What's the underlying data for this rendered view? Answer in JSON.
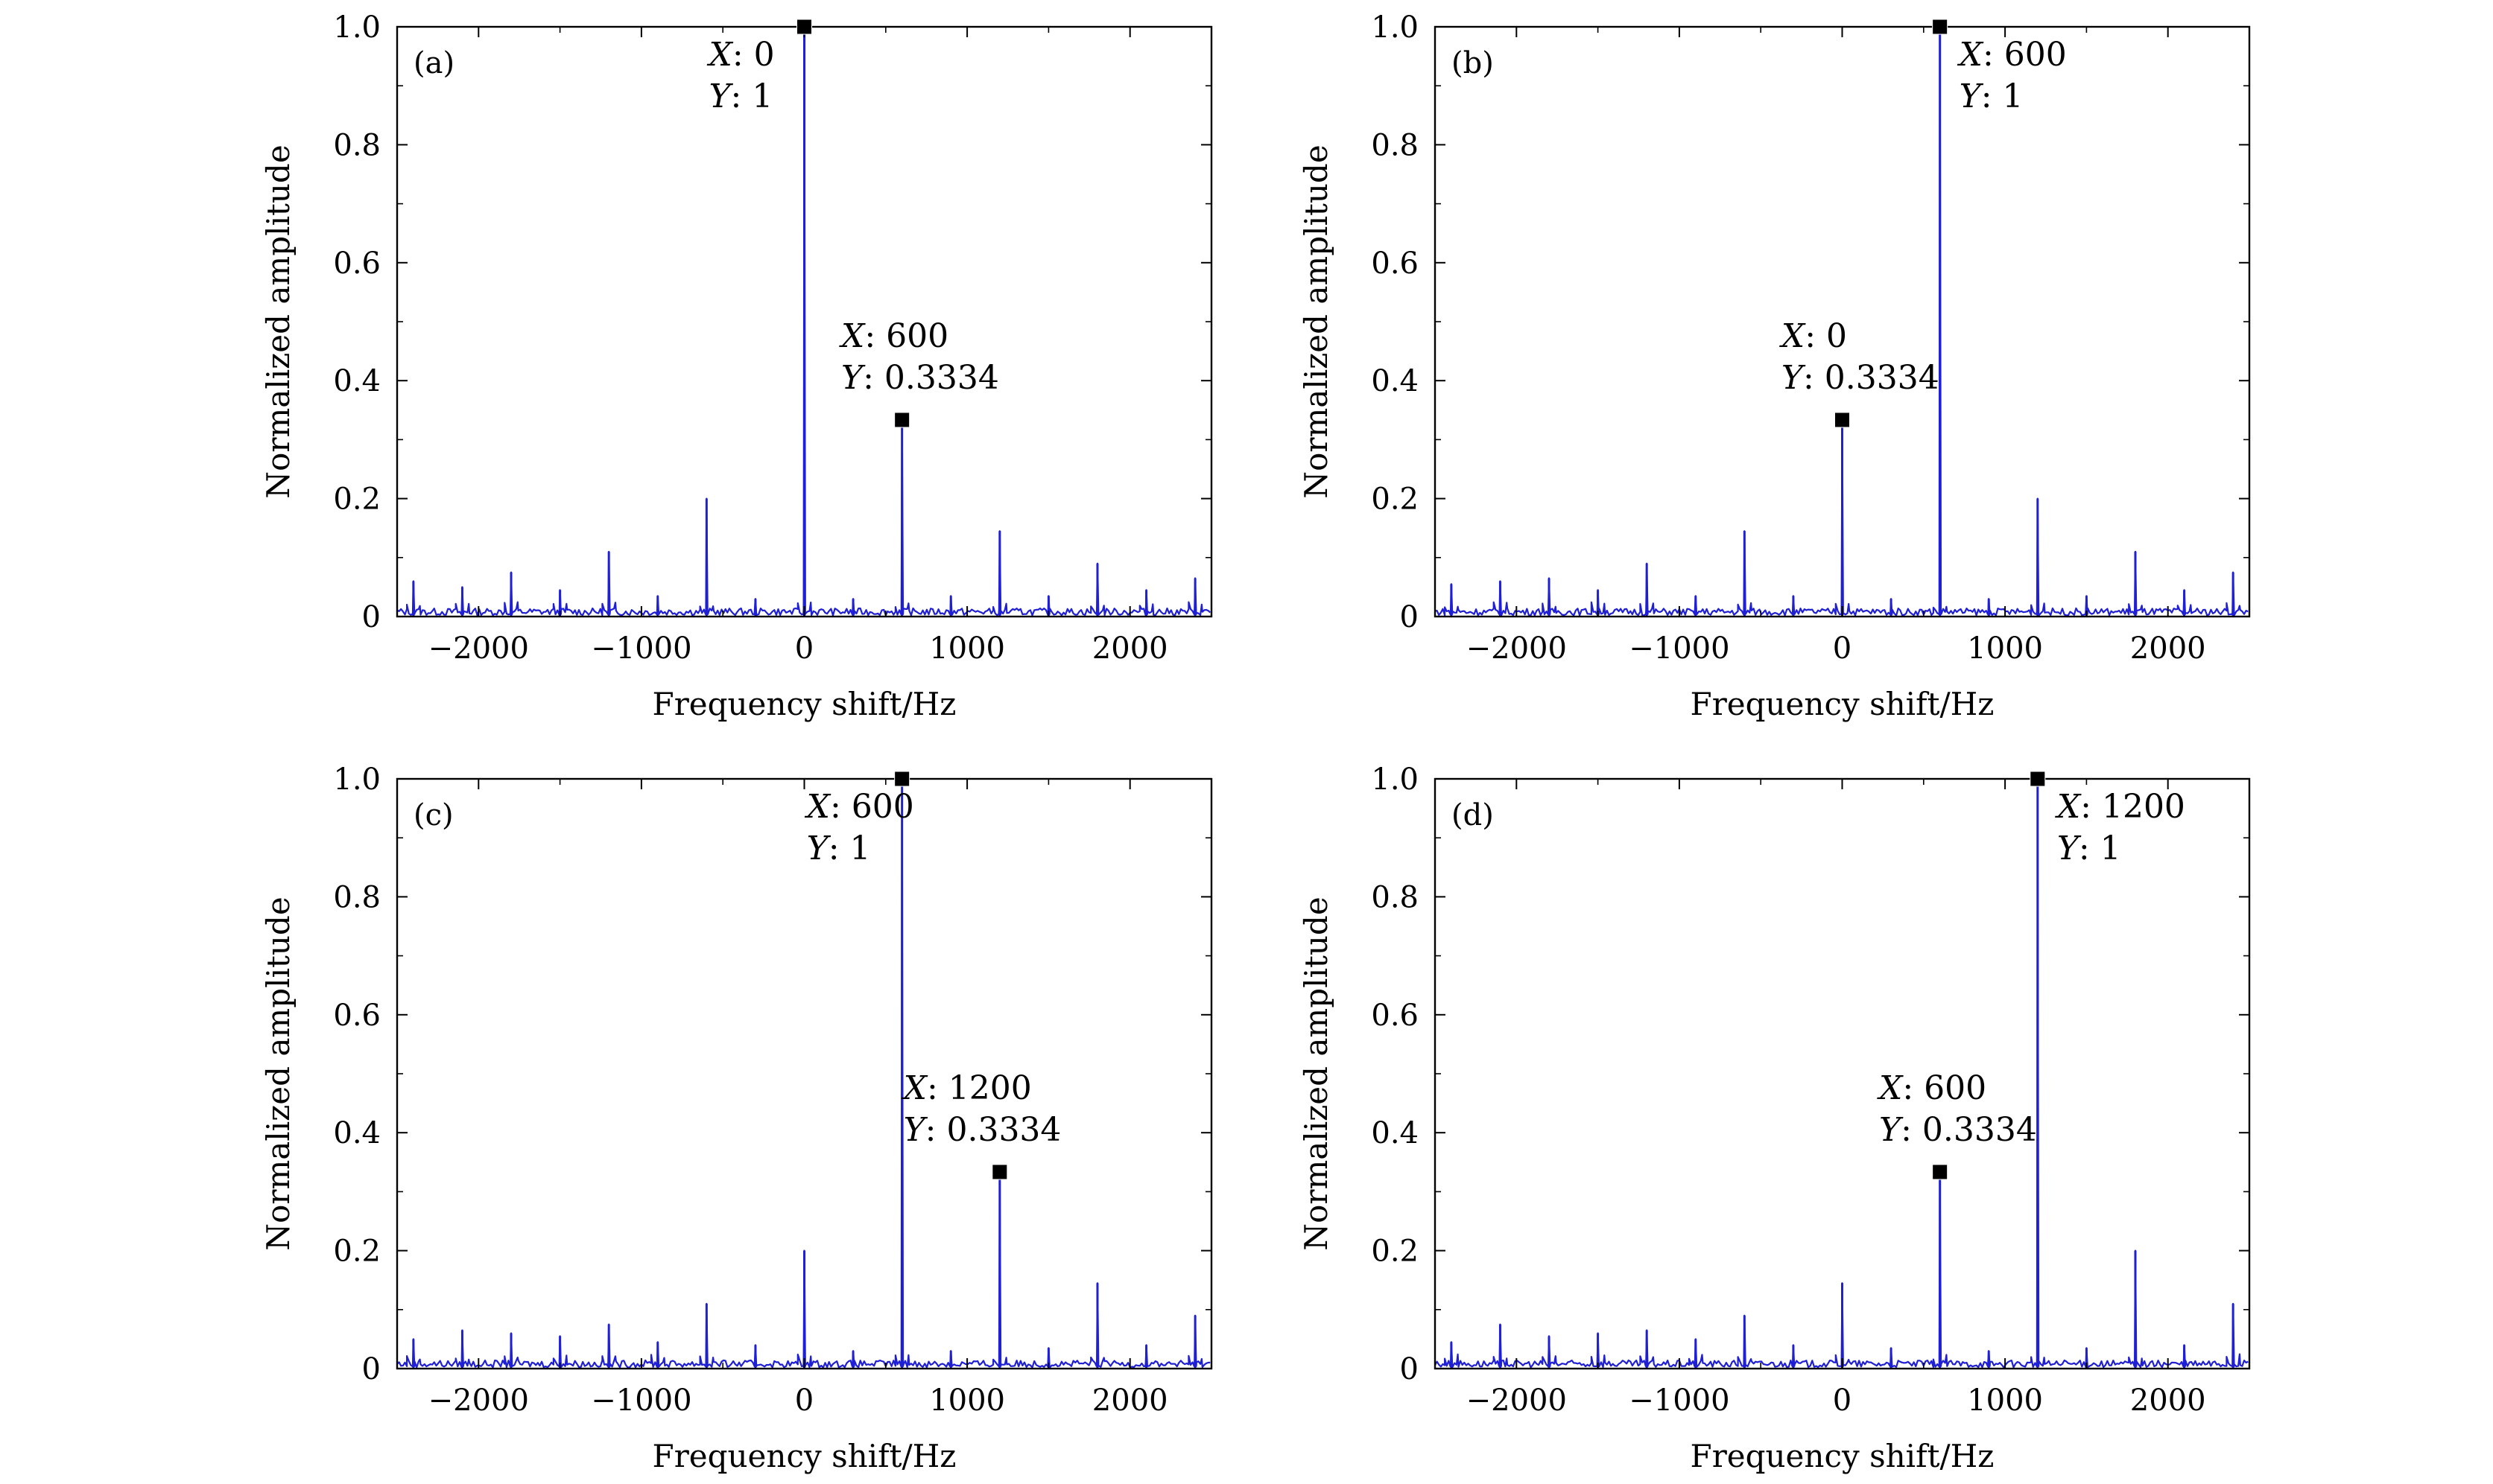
{
  "chart_data": [
    {
      "type": "line",
      "panel": "(a)",
      "xlabel": "Frequency shift/Hz",
      "ylabel": "Normalized amplitude",
      "xlim": [
        -2500,
        2500
      ],
      "ylim": [
        0,
        1.0
      ],
      "xticks": [
        -2000,
        -1000,
        0,
        1000,
        2000
      ],
      "xtick_labels": [
        "−2000",
        "−1000",
        "0",
        "1000",
        "2000"
      ],
      "yticks": [
        0,
        0.2,
        0.4,
        0.6,
        0.8,
        1.0
      ],
      "ytick_labels": [
        "0",
        "0.2",
        "0.4",
        "0.6",
        "0.8",
        "1.0"
      ],
      "grid": false,
      "series_color": "#1f1fd6",
      "peaks": [
        {
          "x": -2400,
          "y": 0.06
        },
        {
          "x": -2100,
          "y": 0.05
        },
        {
          "x": -1800,
          "y": 0.075
        },
        {
          "x": -1500,
          "y": 0.045
        },
        {
          "x": -1200,
          "y": 0.11
        },
        {
          "x": -900,
          "y": 0.035
        },
        {
          "x": -600,
          "y": 0.2
        },
        {
          "x": -300,
          "y": 0.03
        },
        {
          "x": 0,
          "y": 1.0
        },
        {
          "x": 300,
          "y": 0.03
        },
        {
          "x": 600,
          "y": 0.3334
        },
        {
          "x": 900,
          "y": 0.035
        },
        {
          "x": 1200,
          "y": 0.145
        },
        {
          "x": 1500,
          "y": 0.035
        },
        {
          "x": 1800,
          "y": 0.09
        },
        {
          "x": 2100,
          "y": 0.045
        },
        {
          "x": 2400,
          "y": 0.065
        }
      ],
      "datatips": [
        {
          "x": 0,
          "y": 1,
          "x_label": "X",
          "x_text": ": 0",
          "y_label": "Y",
          "y_text": ": 1",
          "placement": "left"
        },
        {
          "x": 600,
          "y": 0.3334,
          "x_label": "X",
          "x_text": ": 600",
          "y_label": "Y",
          "y_text": ": 0.3334",
          "placement": "above"
        }
      ]
    },
    {
      "type": "line",
      "panel": "(b)",
      "xlabel": "Frequency shift/Hz",
      "ylabel": "Normalized amplitude",
      "xlim": [
        -2500,
        2500
      ],
      "ylim": [
        0,
        1.0
      ],
      "xticks": [
        -2000,
        -1000,
        0,
        1000,
        2000
      ],
      "xtick_labels": [
        "−2000",
        "−1000",
        "0",
        "1000",
        "2000"
      ],
      "yticks": [
        0,
        0.2,
        0.4,
        0.6,
        0.8,
        1.0
      ],
      "ytick_labels": [
        "0",
        "0.2",
        "0.4",
        "0.6",
        "0.8",
        "1.0"
      ],
      "grid": false,
      "series_color": "#1f1fd6",
      "peaks": [
        {
          "x": -2400,
          "y": 0.055
        },
        {
          "x": -2100,
          "y": 0.06
        },
        {
          "x": -1800,
          "y": 0.065
        },
        {
          "x": -1500,
          "y": 0.045
        },
        {
          "x": -1200,
          "y": 0.09
        },
        {
          "x": -900,
          "y": 0.035
        },
        {
          "x": -600,
          "y": 0.145
        },
        {
          "x": -300,
          "y": 0.035
        },
        {
          "x": 0,
          "y": 0.3334
        },
        {
          "x": 300,
          "y": 0.03
        },
        {
          "x": 600,
          "y": 1.0
        },
        {
          "x": 900,
          "y": 0.03
        },
        {
          "x": 1200,
          "y": 0.2
        },
        {
          "x": 1500,
          "y": 0.035
        },
        {
          "x": 1800,
          "y": 0.11
        },
        {
          "x": 2100,
          "y": 0.045
        },
        {
          "x": 2400,
          "y": 0.075
        }
      ],
      "datatips": [
        {
          "x": 600,
          "y": 1,
          "x_label": "X",
          "x_text": ": 600",
          "y_label": "Y",
          "y_text": ": 1",
          "placement": "right"
        },
        {
          "x": 0,
          "y": 0.3334,
          "x_label": "X",
          "x_text": ": 0",
          "y_label": "Y",
          "y_text": ": 0.3334",
          "placement": "above"
        }
      ]
    },
    {
      "type": "line",
      "panel": "(c)",
      "xlabel": "Frequency shift/Hz",
      "ylabel": "Normalized amplitude",
      "xlim": [
        -2500,
        2500
      ],
      "ylim": [
        0,
        1.0
      ],
      "xticks": [
        -2000,
        -1000,
        0,
        1000,
        2000
      ],
      "xtick_labels": [
        "−2000",
        "−1000",
        "0",
        "1000",
        "2000"
      ],
      "yticks": [
        0,
        0.2,
        0.4,
        0.6,
        0.8,
        1.0
      ],
      "ytick_labels": [
        "0",
        "0.2",
        "0.4",
        "0.6",
        "0.8",
        "1.0"
      ],
      "grid": false,
      "series_color": "#1f1fd6",
      "peaks": [
        {
          "x": -2400,
          "y": 0.05
        },
        {
          "x": -2100,
          "y": 0.065
        },
        {
          "x": -1800,
          "y": 0.06
        },
        {
          "x": -1500,
          "y": 0.055
        },
        {
          "x": -1200,
          "y": 0.075
        },
        {
          "x": -900,
          "y": 0.045
        },
        {
          "x": -600,
          "y": 0.11
        },
        {
          "x": -300,
          "y": 0.04
        },
        {
          "x": 0,
          "y": 0.2
        },
        {
          "x": 300,
          "y": 0.03
        },
        {
          "x": 600,
          "y": 1.0
        },
        {
          "x": 900,
          "y": 0.03
        },
        {
          "x": 1200,
          "y": 0.3334
        },
        {
          "x": 1500,
          "y": 0.035
        },
        {
          "x": 1800,
          "y": 0.145
        },
        {
          "x": 2100,
          "y": 0.04
        },
        {
          "x": 2400,
          "y": 0.09
        }
      ],
      "datatips": [
        {
          "x": 600,
          "y": 1,
          "x_label": "X",
          "x_text": ": 600",
          "y_label": "Y",
          "y_text": ": 1",
          "placement": "left"
        },
        {
          "x": 1200,
          "y": 0.3334,
          "x_label": "X",
          "x_text": ": 1200",
          "y_label": "Y",
          "y_text": ": 0.3334",
          "placement": "above"
        }
      ]
    },
    {
      "type": "line",
      "panel": "(d)",
      "xlabel": "Frequency shift/Hz",
      "ylabel": "Normalized amplitude",
      "xlim": [
        -2500,
        2500
      ],
      "ylim": [
        0,
        1.0
      ],
      "xticks": [
        -2000,
        -1000,
        0,
        1000,
        2000
      ],
      "xtick_labels": [
        "−2000",
        "−1000",
        "0",
        "1000",
        "2000"
      ],
      "yticks": [
        0,
        0.2,
        0.4,
        0.6,
        0.8,
        1.0
      ],
      "ytick_labels": [
        "0",
        "0.2",
        "0.4",
        "0.6",
        "0.8",
        "1.0"
      ],
      "grid": false,
      "series_color": "#1f1fd6",
      "peaks": [
        {
          "x": -2400,
          "y": 0.045
        },
        {
          "x": -2100,
          "y": 0.075
        },
        {
          "x": -1800,
          "y": 0.055
        },
        {
          "x": -1500,
          "y": 0.06
        },
        {
          "x": -1200,
          "y": 0.065
        },
        {
          "x": -900,
          "y": 0.05
        },
        {
          "x": -600,
          "y": 0.09
        },
        {
          "x": -300,
          "y": 0.04
        },
        {
          "x": 0,
          "y": 0.145
        },
        {
          "x": 300,
          "y": 0.035
        },
        {
          "x": 600,
          "y": 0.3334
        },
        {
          "x": 900,
          "y": 0.03
        },
        {
          "x": 1200,
          "y": 1.0
        },
        {
          "x": 1500,
          "y": 0.035
        },
        {
          "x": 1800,
          "y": 0.2
        },
        {
          "x": 2100,
          "y": 0.04
        },
        {
          "x": 2400,
          "y": 0.11
        }
      ],
      "datatips": [
        {
          "x": 1200,
          "y": 1,
          "x_label": "X",
          "x_text": ": 1200",
          "y_label": "Y",
          "y_text": ": 1",
          "placement": "right"
        },
        {
          "x": 600,
          "y": 0.3334,
          "x_label": "X",
          "x_text": ": 600",
          "y_label": "Y",
          "y_text": ": 0.3334",
          "placement": "above"
        }
      ]
    }
  ]
}
